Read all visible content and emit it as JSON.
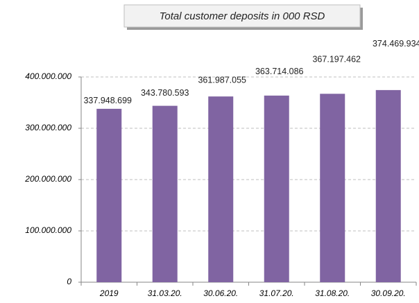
{
  "chart_data": {
    "type": "bar",
    "title": "Total customer deposits  in 000 RSD",
    "categories": [
      "2019",
      "31.03.20.",
      "30.06.20.",
      "31.07.20.",
      "31.08.20.",
      "30.09.20."
    ],
    "values": [
      337948699,
      343780593,
      361987055,
      363714086,
      367197462,
      374469934
    ],
    "value_labels": [
      "337.948.699",
      "343.780.593",
      "361.987.055",
      "363.714.086",
      "367.197.462",
      "374.469.934"
    ],
    "color": "#8064a2",
    "ylim": [
      0,
      400000000
    ],
    "yticks": [
      0,
      {
        "value": 100000000,
        "label": "100.000.000"
      },
      {
        "value": 200000000,
        "label": "200.000.000"
      },
      {
        "value": 300000000,
        "label": "300.000.000"
      },
      {
        "value": 400000000,
        "label": "400.000.000"
      }
    ],
    "grid": true
  }
}
